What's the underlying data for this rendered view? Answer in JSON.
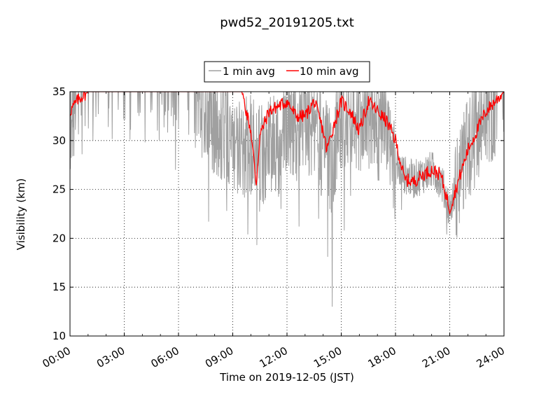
{
  "chart_data": {
    "type": "line",
    "title": "pwd52_20191205.txt",
    "xlabel": "Time on 2019-12-05 (JST)",
    "ylabel": "Visibility (km)",
    "xlim_hours": [
      0,
      24
    ],
    "ylim": [
      10,
      35
    ],
    "x_tick_labels": [
      "00:00",
      "03:00",
      "06:00",
      "09:00",
      "12:00",
      "15:00",
      "18:00",
      "21:00",
      "24:00"
    ],
    "y_tick_labels": [
      "10",
      "15",
      "20",
      "25",
      "30",
      "35"
    ],
    "grid": true,
    "legend_position": "top-center (above plot)",
    "series": [
      {
        "name": "1 min avg",
        "color": "#a0a0a0",
        "x_hours": [
          0.0,
          0.5,
          1.0,
          1.5,
          2.0,
          2.5,
          3.0,
          3.5,
          4.0,
          4.5,
          5.0,
          5.5,
          6.0,
          6.5,
          7.0,
          7.5,
          8.0,
          8.5,
          9.0,
          9.5,
          10.0,
          10.5,
          11.0,
          11.5,
          12.0,
          12.5,
          13.0,
          13.5,
          14.0,
          14.5,
          15.0,
          15.5,
          16.0,
          16.5,
          17.0,
          17.5,
          18.0,
          18.5,
          19.0,
          19.5,
          20.0,
          20.5,
          21.0,
          21.5,
          22.0,
          22.5,
          23.0,
          23.5,
          24.0
        ],
        "values_km": [
          33,
          34.5,
          34.8,
          34.7,
          34.9,
          34.6,
          34.8,
          34.7,
          34.9,
          34.5,
          34.8,
          34.6,
          34.5,
          34.7,
          34.0,
          33.5,
          32.0,
          31.5,
          30.5,
          29.5,
          30.0,
          28.5,
          30.5,
          29.5,
          33.0,
          31.5,
          32.5,
          31.0,
          30.0,
          27.5,
          33.5,
          30.0,
          32.5,
          33.0,
          31.5,
          32.5,
          27.5,
          26.5,
          26.0,
          26.5,
          27.0,
          26.0,
          23.0,
          26.0,
          29.5,
          31.5,
          33.5,
          34.0,
          34.5
        ],
        "spike_minima": [
          {
            "time": "00:40",
            "value_km": 28.6
          },
          {
            "time": "05:50",
            "value_km": 27.0
          },
          {
            "time": "07:40",
            "value_km": 21.7
          },
          {
            "time": "08:40",
            "value_km": 22.8
          },
          {
            "time": "09:50",
            "value_km": 20.4
          },
          {
            "time": "10:20",
            "value_km": 19.3
          },
          {
            "time": "11:40",
            "value_km": 23.0
          },
          {
            "time": "12:40",
            "value_km": 21.2
          },
          {
            "time": "13:45",
            "value_km": 22.0
          },
          {
            "time": "14:15",
            "value_km": 18.1
          },
          {
            "time": "14:30",
            "value_km": 13.0
          },
          {
            "time": "15:10",
            "value_km": 20.8
          },
          {
            "time": "18:20",
            "value_km": 22.9
          },
          {
            "time": "20:50",
            "value_km": 20.4
          },
          {
            "time": "21:05",
            "value_km": 21.9
          }
        ]
      },
      {
        "name": "10 min avg",
        "color": "#ff0000",
        "x_hours": [
          0.0,
          0.5,
          1.0,
          1.5,
          2.0,
          2.5,
          3.0,
          3.5,
          4.0,
          4.5,
          5.0,
          5.5,
          6.0,
          6.5,
          7.0,
          7.5,
          8.0,
          8.5,
          9.0,
          9.5,
          10.0,
          10.3,
          10.5,
          11.0,
          11.5,
          12.0,
          12.5,
          13.0,
          13.5,
          14.0,
          14.2,
          14.5,
          15.0,
          15.5,
          16.0,
          16.5,
          17.0,
          17.5,
          18.0,
          18.5,
          19.0,
          19.5,
          20.0,
          20.5,
          21.0,
          21.5,
          22.0,
          22.5,
          23.0,
          23.5,
          24.0
        ],
        "values_km": [
          33.0,
          34.3,
          35.0,
          35.0,
          35.0,
          35.0,
          35.0,
          35.0,
          35.0,
          35.0,
          35.0,
          35.0,
          35.0,
          35.0,
          35.0,
          35.0,
          35.0,
          35.0,
          35.0,
          35.0,
          31.0,
          25.6,
          30.5,
          33.0,
          33.5,
          34.0,
          32.5,
          32.5,
          34.0,
          31.0,
          29.0,
          31.0,
          34.0,
          33.0,
          31.0,
          34.0,
          33.0,
          32.0,
          30.0,
          26.0,
          25.8,
          26.5,
          27.0,
          26.5,
          23.0,
          26.0,
          29.0,
          31.0,
          33.0,
          34.0,
          35.0
        ]
      }
    ]
  }
}
